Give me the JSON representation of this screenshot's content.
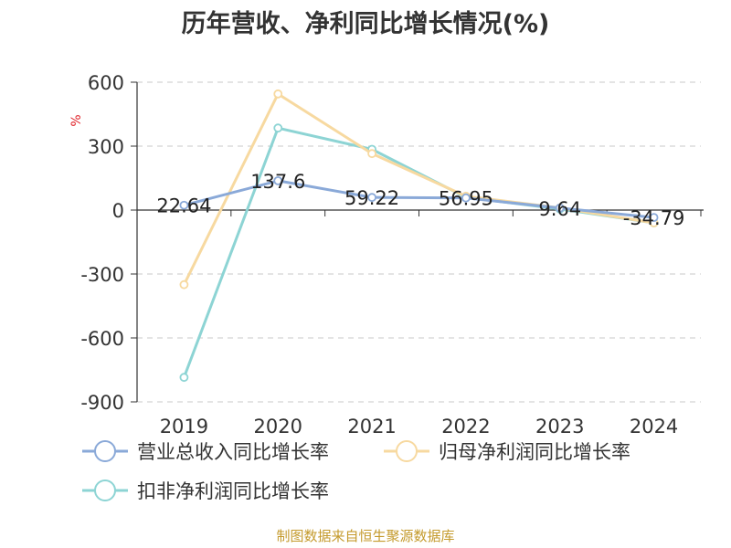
{
  "chart": {
    "title": "历年营收、净利同比增长情况(%)",
    "source": "制图数据来自恒生聚源数据库"
  },
  "chart_data": {
    "type": "line",
    "title": "历年营收、净利同比增长情况(%)",
    "ylabel": "%",
    "ylim": [
      -900,
      600
    ],
    "yticks": [
      600,
      300,
      0,
      -300,
      -600,
      -900
    ],
    "categories": [
      "2019",
      "2020",
      "2021",
      "2022",
      "2023",
      "2024"
    ],
    "grid": true,
    "legend_position": "bottom-left",
    "series": [
      {
        "name": "营业总收入同比增长率",
        "color": "#8aa9d8",
        "values": [
          22.64,
          137.6,
          59.22,
          56.95,
          9.64,
          -34.79
        ],
        "labels": [
          "22.64",
          "137.6",
          "59.22",
          "56.95",
          "9.64",
          "-34.79"
        ]
      },
      {
        "name": "归母净利润同比增长率",
        "color": "#f7d9a0",
        "values": [
          -350,
          545,
          265,
          65,
          10,
          -60
        ]
      },
      {
        "name": "扣非净利润同比增长率",
        "color": "#8dd4d4",
        "values": [
          -785,
          385,
          285,
          60,
          5,
          -60
        ]
      }
    ]
  }
}
